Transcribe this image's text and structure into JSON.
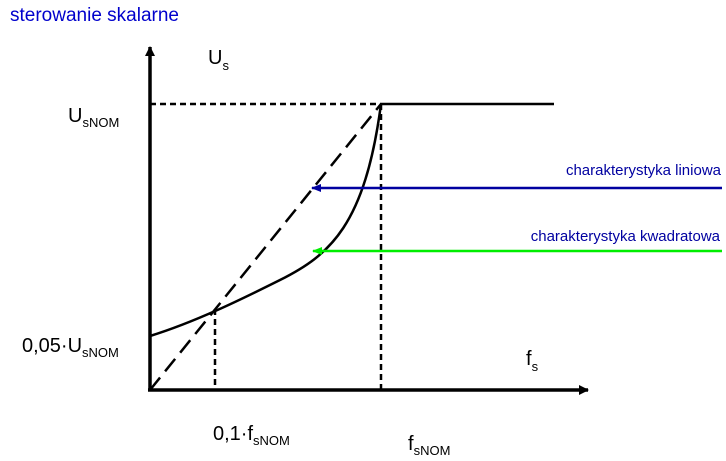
{
  "title": "sterowanie skalarne",
  "colors": {
    "title": "#0000cc",
    "linear_arrow": "#0000a0",
    "quadratic_arrow": "#00ee00",
    "ink": "#000000",
    "background": "#ffffff"
  },
  "axes": {
    "y_label": {
      "main": "U",
      "sub": "s"
    },
    "x_label": {
      "main": "f",
      "sub": "s"
    }
  },
  "ticks": {
    "y_top": {
      "main": "U",
      "sub": "sNOM"
    },
    "y_low": {
      "main": "0,05·U",
      "sub": "sNOM"
    },
    "x_low": {
      "main": "0,1·f",
      "sub": "sNOM"
    },
    "x_nom": {
      "main": "f",
      "sub": "sNOM"
    }
  },
  "annotations": {
    "linear": "charakterystyka liniowa",
    "quadratic": "charakterystyka kwadratowa"
  }
}
